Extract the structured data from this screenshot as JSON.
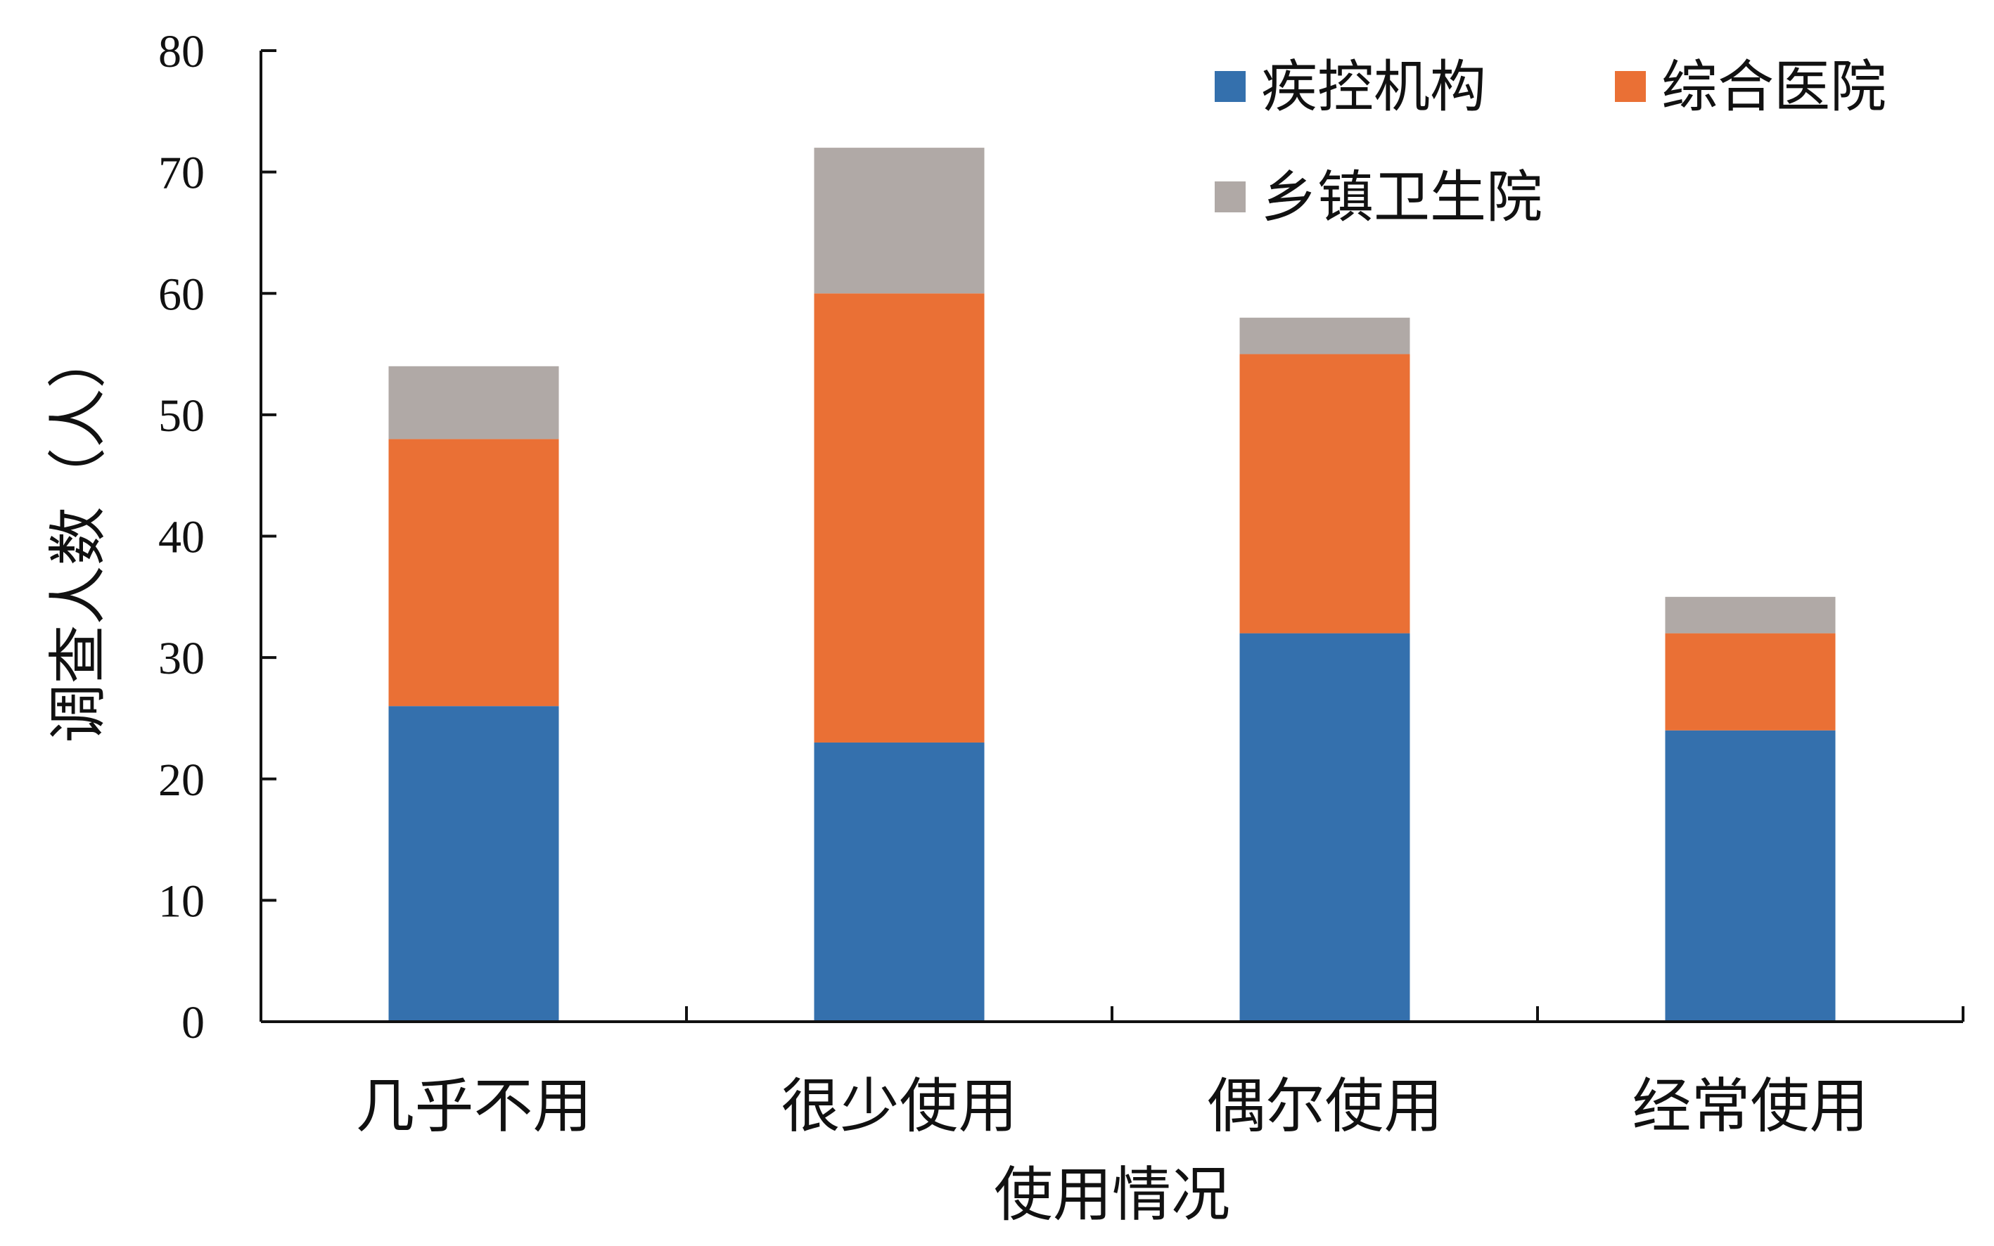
{
  "chart_data": {
    "type": "bar",
    "stacked": true,
    "categories": [
      "几乎不用",
      "很少使用",
      "偶尔使用",
      "经常使用"
    ],
    "series": [
      {
        "name": "疾控机构",
        "color": "#3470AD",
        "values": [
          26,
          23,
          32,
          24
        ]
      },
      {
        "name": "综合医院",
        "color": "#EA7035",
        "values": [
          22,
          37,
          23,
          8
        ]
      },
      {
        "name": "乡镇卫生院",
        "color": "#B0A9A6",
        "values": [
          6,
          12,
          3,
          3
        ]
      }
    ],
    "xlabel": "使用情况",
    "ylabel": "调查人数（人）",
    "ylim": [
      0,
      80
    ],
    "yticks": [
      "0",
      "10",
      "20",
      "30",
      "40",
      "50",
      "60",
      "70",
      "80"
    ],
    "grid": false,
    "legend_position": "top-right"
  }
}
